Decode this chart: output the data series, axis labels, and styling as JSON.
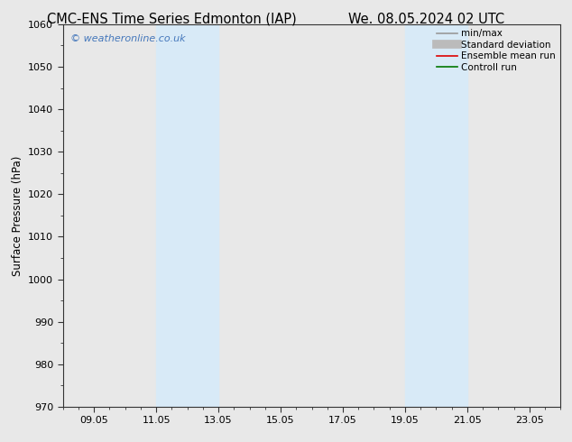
{
  "title_left": "CMC-ENS Time Series Edmonton (IAP)",
  "title_right": "We. 08.05.2024 02 UTC",
  "ylabel": "Surface Pressure (hPa)",
  "ylim": [
    970,
    1060
  ],
  "yticks": [
    970,
    980,
    990,
    1000,
    1010,
    1020,
    1030,
    1040,
    1050,
    1060
  ],
  "xtick_labels": [
    "09.05",
    "11.05",
    "13.05",
    "15.05",
    "17.05",
    "19.05",
    "21.05",
    "23.05"
  ],
  "xtick_positions": [
    1,
    3,
    5,
    7,
    9,
    11,
    13,
    15
  ],
  "xlim": [
    0,
    16
  ],
  "shaded_regions": [
    {
      "x_start": 3,
      "x_end": 5
    },
    {
      "x_start": 11,
      "x_end": 13
    }
  ],
  "shade_color": "#d8eaf7",
  "watermark": "© weatheronline.co.uk",
  "watermark_color": "#4477bb",
  "legend_items": [
    {
      "label": "min/max",
      "color": "#999999",
      "lw": 1.2
    },
    {
      "label": "Standard deviation",
      "color": "#bbbbbb",
      "lw": 7
    },
    {
      "label": "Ensemble mean run",
      "color": "#dd0000",
      "lw": 1.2
    },
    {
      "label": "Controll run",
      "color": "#007700",
      "lw": 1.2
    }
  ],
  "bg_color": "#e8e8e8",
  "plot_bg_color": "#e8e8e8",
  "grid_color": "#aaaaaa",
  "spine_color": "#333333",
  "title_fontsize": 10.5,
  "ylabel_fontsize": 8.5,
  "tick_fontsize": 8,
  "legend_fontsize": 7.5,
  "watermark_fontsize": 8,
  "figsize": [
    6.34,
    4.9
  ],
  "dpi": 100
}
